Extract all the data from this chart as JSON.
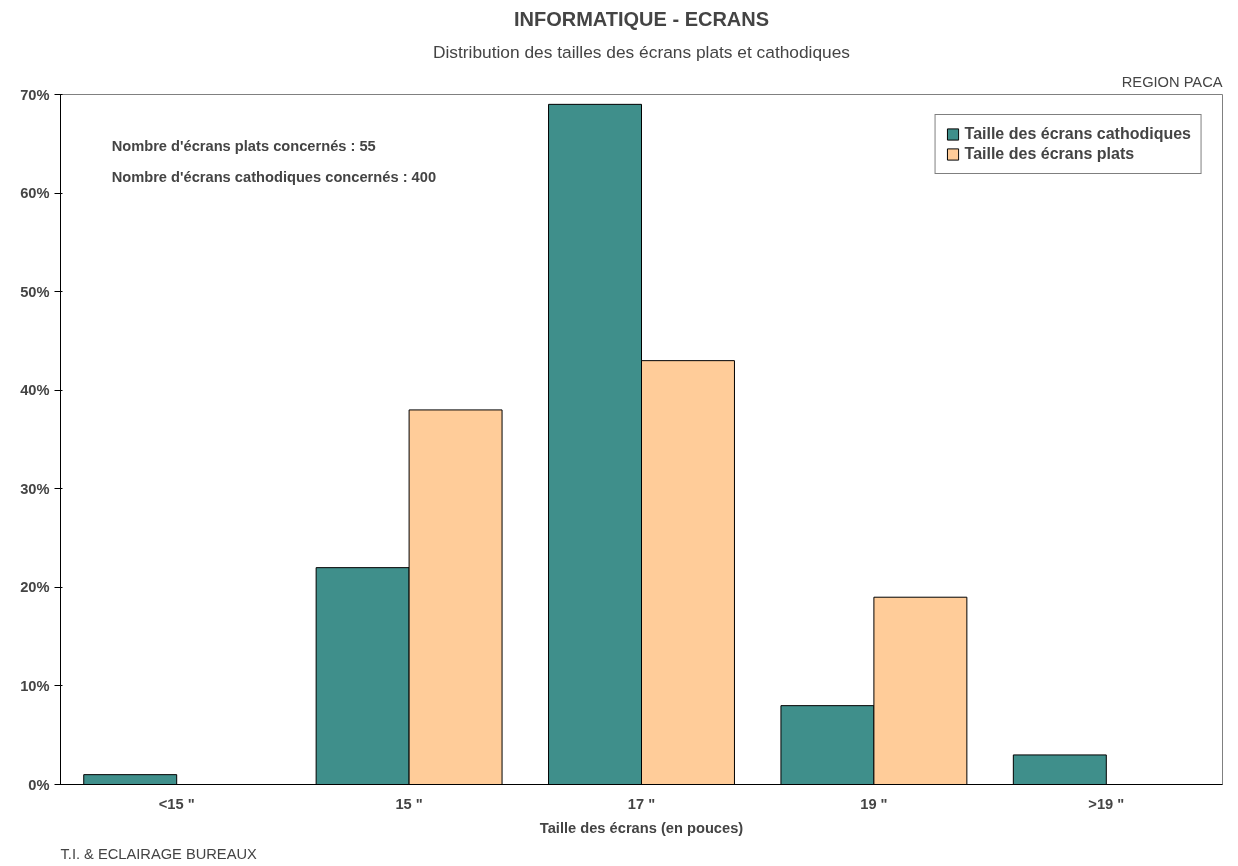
{
  "chart_data": {
    "type": "bar",
    "title": "INFORMATIQUE - ECRANS",
    "subtitle": "Distribution des tailles des écrans plats et cathodiques",
    "xlabel": "Taille des écrans (en pouces)",
    "categories": [
      "<15 \"",
      "15 \"",
      "17 \"",
      "19 \"",
      ">19 \""
    ],
    "series": [
      {
        "name": "Taille des écrans cathodiques",
        "color": "#3f8f8b",
        "values": [
          1,
          22,
          69,
          8,
          3
        ]
      },
      {
        "name": "Taille des écrans plats",
        "color": "#ffcc99",
        "values": [
          null,
          38,
          43,
          19,
          null
        ]
      }
    ],
    "ylim": [
      0,
      70
    ],
    "yticks": [
      {
        "value": 0,
        "label": "0%"
      },
      {
        "value": 10,
        "label": "10%"
      },
      {
        "value": 20,
        "label": "20%"
      },
      {
        "value": 30,
        "label": "30%"
      },
      {
        "value": 40,
        "label": "40%"
      },
      {
        "value": 50,
        "label": "50%"
      },
      {
        "value": 60,
        "label": "60%"
      },
      {
        "value": 70,
        "label": "70%"
      }
    ],
    "grid": false,
    "legend": "top right",
    "annotations": [
      "Nombre d'écrans plats concernés : 55",
      "Nombre d'écrans cathodiques concernés : 400",
      "REGION PACA",
      "T.I. & ECLAIRAGE BUREAUX"
    ]
  }
}
